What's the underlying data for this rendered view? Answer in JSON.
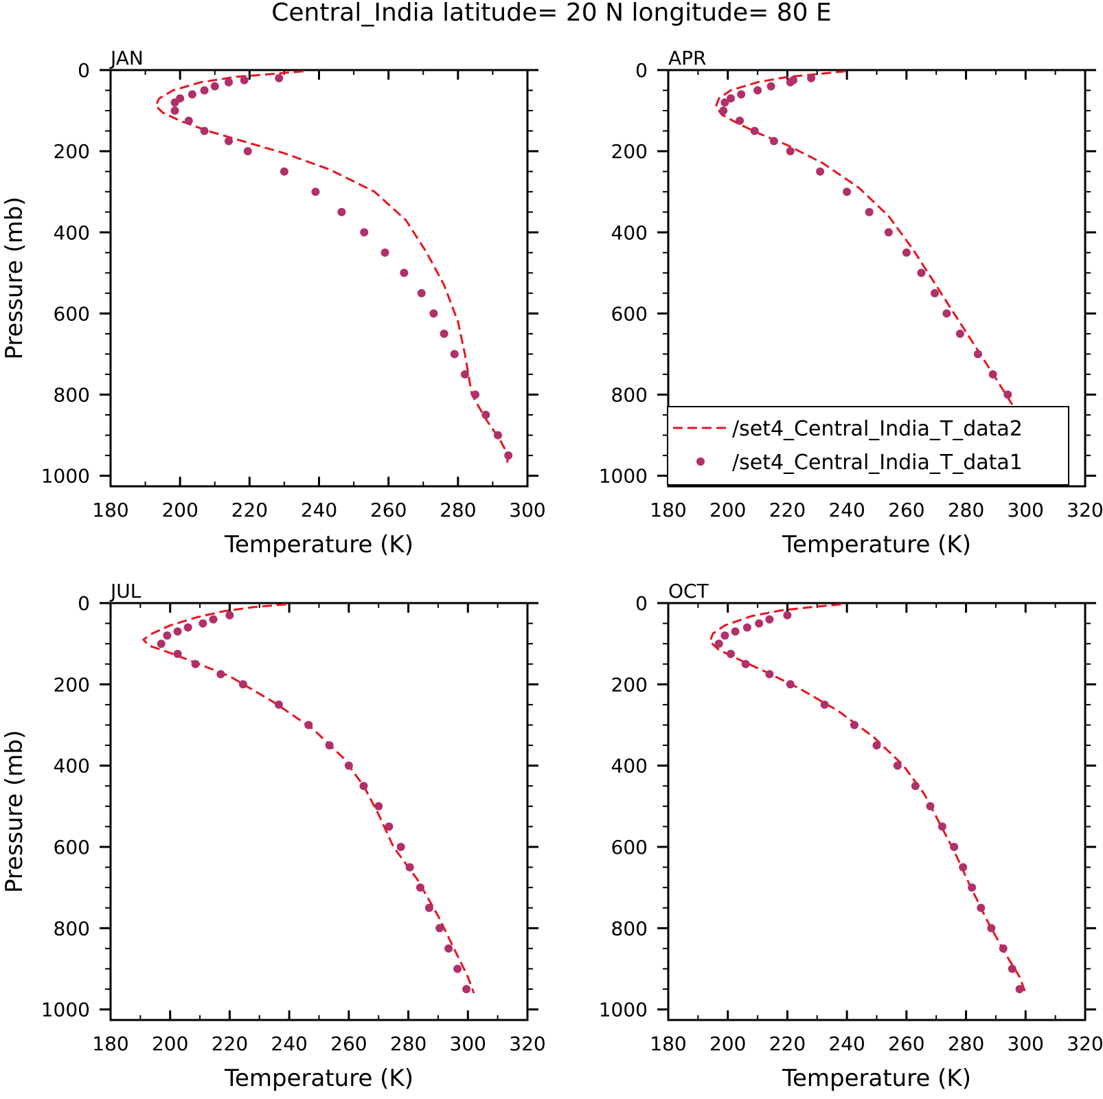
{
  "title": "Central_India  latitude= 20 N longitude= 80 E",
  "colors": {
    "line": "#e8141e",
    "marker": "#b0306a"
  },
  "legend": {
    "placement": "lower-right of APR panel",
    "line_label": "/set4_Central_India_T_data2",
    "marker_label": "/set4_Central_India_T_data1"
  },
  "chart_data": [
    {
      "type": "line",
      "title": "JAN",
      "xlabel": "Temperature (K)",
      "ylabel": "Pressure (mb)",
      "xlim": [
        180,
        300
      ],
      "ylim": [
        1000,
        0
      ],
      "xticks": [
        "180",
        "200",
        "220",
        "240",
        "260",
        "280",
        "300"
      ],
      "yticks": [
        "0",
        "200",
        "400",
        "600",
        "800",
        "1000"
      ],
      "series": [
        {
          "name": "/set4_Central_India_T_data2",
          "style": "dashed-line",
          "points": [
            [
              235.5,
              3
            ],
            [
              226,
              10
            ],
            [
              216,
              17
            ],
            [
              206,
              30
            ],
            [
              198,
              50
            ],
            [
              194,
              70
            ],
            [
              193,
              88
            ],
            [
              195,
              105
            ],
            [
              200,
              125
            ],
            [
              208,
              150
            ],
            [
              218,
              175
            ],
            [
              230,
              205
            ],
            [
              243,
              245
            ],
            [
              256,
              300
            ],
            [
              265,
              370
            ],
            [
              271,
              450
            ],
            [
              276,
              530
            ],
            [
              280,
              620
            ],
            [
              282,
              700
            ],
            [
              284,
              800
            ],
            [
              288,
              860
            ],
            [
              292,
              910
            ],
            [
              294.5,
              950
            ],
            [
              294,
              975
            ]
          ]
        },
        {
          "name": "/set4_Central_India_T_data1",
          "style": "markers",
          "points": [
            [
              228.5,
              20
            ],
            [
              218.5,
              25
            ],
            [
              214,
              30
            ],
            [
              210,
              40
            ],
            [
              207,
              50
            ],
            [
              203.5,
              60
            ],
            [
              200,
              70
            ],
            [
              198.5,
              80
            ],
            [
              198.5,
              100
            ],
            [
              202.5,
              125
            ],
            [
              207,
              150
            ],
            [
              214,
              175
            ],
            [
              219.5,
              200
            ],
            [
              230,
              250
            ],
            [
              239,
              300
            ],
            [
              246.5,
              350
            ],
            [
              253,
              400
            ],
            [
              259,
              450
            ],
            [
              264.5,
              500
            ],
            [
              269.5,
              550
            ],
            [
              273,
              600
            ],
            [
              276,
              650
            ],
            [
              279,
              700
            ],
            [
              282,
              750
            ],
            [
              285,
              800
            ],
            [
              288,
              850
            ],
            [
              291.5,
              900
            ],
            [
              294.5,
              950
            ]
          ]
        }
      ]
    },
    {
      "type": "line",
      "title": "APR",
      "xlabel": "Temperature (K)",
      "ylabel": "",
      "xlim": [
        180,
        320
      ],
      "ylim": [
        1000,
        0
      ],
      "xticks": [
        "180",
        "200",
        "220",
        "240",
        "260",
        "280",
        "300",
        "320"
      ],
      "yticks": [
        "0",
        "200",
        "400",
        "600",
        "800",
        "1000"
      ],
      "series": [
        {
          "name": "/set4_Central_India_T_data2",
          "style": "dashed-line",
          "points": [
            [
              239.5,
              3
            ],
            [
              230,
              10
            ],
            [
              220,
              17
            ],
            [
              210,
              30
            ],
            [
              201,
              50
            ],
            [
              197,
              70
            ],
            [
              196,
              90
            ],
            [
              198,
              110
            ],
            [
              203,
              130
            ],
            [
              210,
              155
            ],
            [
              220,
              185
            ],
            [
              232,
              230
            ],
            [
              244,
              290
            ],
            [
              254,
              360
            ],
            [
              262,
              440
            ],
            [
              269,
              520
            ],
            [
              276,
              600
            ],
            [
              283,
              680
            ],
            [
              290,
              760
            ],
            [
              296,
              830
            ],
            [
              302,
              890
            ],
            [
              306,
              930
            ],
            [
              308,
              960
            ]
          ]
        },
        {
          "name": "/set4_Central_India_T_data1",
          "style": "markers",
          "points": [
            [
              228,
              20
            ],
            [
              222,
              25
            ],
            [
              221,
              30
            ],
            [
              214.5,
              40
            ],
            [
              210,
              50
            ],
            [
              204.5,
              60
            ],
            [
              201,
              70
            ],
            [
              199,
              80
            ],
            [
              198.5,
              100
            ],
            [
              204,
              125
            ],
            [
              209,
              150
            ],
            [
              215.5,
              175
            ],
            [
              221,
              200
            ],
            [
              231,
              250
            ],
            [
              240,
              300
            ],
            [
              247.5,
              350
            ],
            [
              254,
              400
            ],
            [
              260,
              450
            ],
            [
              265,
              500
            ],
            [
              269.5,
              550
            ],
            [
              273.5,
              600
            ],
            [
              278,
              650
            ],
            [
              284,
              700
            ],
            [
              289,
              750
            ],
            [
              294,
              800
            ],
            [
              298.5,
              850
            ],
            [
              303,
              900
            ],
            [
              303.5,
              950
            ]
          ]
        }
      ]
    },
    {
      "type": "line",
      "title": "JUL",
      "xlabel": "Temperature (K)",
      "ylabel": "Pressure (mb)",
      "xlim": [
        180,
        320
      ],
      "ylim": [
        1000,
        0
      ],
      "xticks": [
        "180",
        "200",
        "220",
        "240",
        "260",
        "280",
        "300",
        "320"
      ],
      "yticks": [
        "0",
        "200",
        "400",
        "600",
        "800",
        "1000"
      ],
      "series": [
        {
          "name": "/set4_Central_India_T_data2",
          "style": "dashed-line",
          "points": [
            [
              239,
              3
            ],
            [
              228,
              10
            ],
            [
              218,
              20
            ],
            [
              209,
              35
            ],
            [
              200,
              55
            ],
            [
              194,
              75
            ],
            [
              191,
              90
            ],
            [
              193,
              105
            ],
            [
              199,
              120
            ],
            [
              208,
              145
            ],
            [
              220,
              180
            ],
            [
              235,
              245
            ],
            [
              248,
              310
            ],
            [
              258,
              380
            ],
            [
              265,
              450
            ],
            [
              270,
              520
            ],
            [
              275,
              600
            ],
            [
              283,
              680
            ],
            [
              290,
              770
            ],
            [
              296,
              860
            ],
            [
              300,
              920
            ],
            [
              302,
              960
            ]
          ]
        },
        {
          "name": "/set4_Central_India_T_data1",
          "style": "markers",
          "points": [
            [
              220,
              30
            ],
            [
              214.5,
              40
            ],
            [
              211,
              50
            ],
            [
              206,
              60
            ],
            [
              202.5,
              70
            ],
            [
              199,
              80
            ],
            [
              197,
              100
            ],
            [
              202.5,
              125
            ],
            [
              208.5,
              150
            ],
            [
              217,
              175
            ],
            [
              224.5,
              200
            ],
            [
              236.5,
              250
            ],
            [
              246.5,
              300
            ],
            [
              253.5,
              350
            ],
            [
              260,
              400
            ],
            [
              265,
              450
            ],
            [
              270,
              500
            ],
            [
              273.5,
              550
            ],
            [
              277.5,
              600
            ],
            [
              280.5,
              650
            ],
            [
              284,
              700
            ],
            [
              287,
              750
            ],
            [
              290.5,
              800
            ],
            [
              293.5,
              850
            ],
            [
              296.5,
              900
            ],
            [
              299.5,
              950
            ]
          ]
        }
      ]
    },
    {
      "type": "line",
      "title": "OCT",
      "xlabel": "Temperature (K)",
      "ylabel": "",
      "xlim": [
        180,
        320
      ],
      "ylim": [
        1000,
        0
      ],
      "xticks": [
        "180",
        "200",
        "220",
        "240",
        "260",
        "280",
        "300",
        "320"
      ],
      "yticks": [
        "0",
        "200",
        "400",
        "600",
        "800",
        "1000"
      ],
      "series": [
        {
          "name": "/set4_Central_India_T_data2",
          "style": "dashed-line",
          "points": [
            [
              238,
              3
            ],
            [
              228,
              10
            ],
            [
              218,
              18
            ],
            [
              208,
              32
            ],
            [
              199,
              55
            ],
            [
              195,
              75
            ],
            [
              194,
              95
            ],
            [
              197,
              115
            ],
            [
              204,
              140
            ],
            [
              213,
              170
            ],
            [
              224,
              210
            ],
            [
              237,
              265
            ],
            [
              249,
              330
            ],
            [
              259,
              400
            ],
            [
              266,
              470
            ],
            [
              271,
              540
            ],
            [
              276,
              610
            ],
            [
              281,
              690
            ],
            [
              287,
              780
            ],
            [
              293,
              860
            ],
            [
              298,
              920
            ],
            [
              300,
              960
            ]
          ]
        },
        {
          "name": "/set4_Central_India_T_data1",
          "style": "markers",
          "points": [
            [
              220,
              30
            ],
            [
              214,
              40
            ],
            [
              210.5,
              50
            ],
            [
              206.5,
              60
            ],
            [
              202.5,
              70
            ],
            [
              199,
              80
            ],
            [
              197,
              100
            ],
            [
              201,
              125
            ],
            [
              206,
              150
            ],
            [
              214,
              175
            ],
            [
              221,
              200
            ],
            [
              232.5,
              250
            ],
            [
              242.5,
              300
            ],
            [
              250,
              350
            ],
            [
              257,
              400
            ],
            [
              263,
              450
            ],
            [
              268,
              500
            ],
            [
              272,
              550
            ],
            [
              276,
              600
            ],
            [
              279,
              650
            ],
            [
              282,
              700
            ],
            [
              285,
              750
            ],
            [
              288.5,
              800
            ],
            [
              292.5,
              850
            ],
            [
              295.5,
              900
            ],
            [
              298,
              950
            ]
          ]
        }
      ]
    }
  ]
}
